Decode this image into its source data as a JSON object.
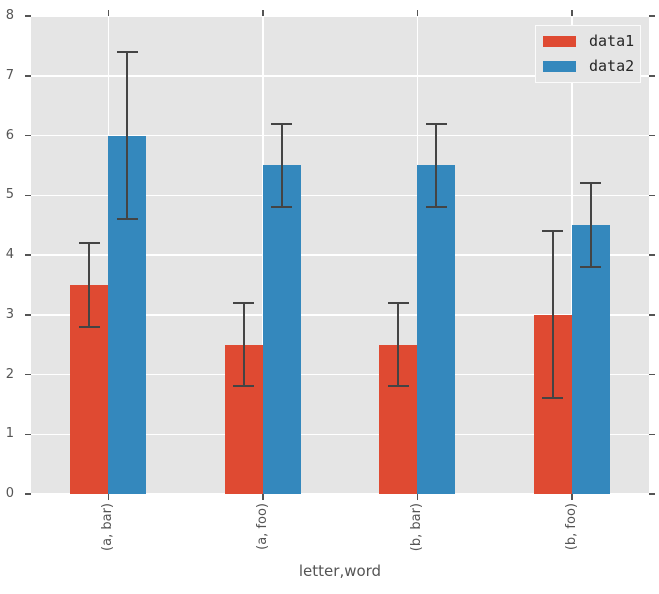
{
  "figure": {
    "background": "#ffffff",
    "panel_background": "#e5e5e5",
    "grid_color": "#ffffff",
    "tick_color": "#555555",
    "text_color": "#555555",
    "error_bar_color": "#444444",
    "legend_border_color": "#fbfbfb",
    "legend_background": "#e5e5e5"
  },
  "chart_data": {
    "type": "bar",
    "title": "",
    "xlabel": "letter,word",
    "ylabel": "",
    "categories": [
      "(a, bar)",
      "(a, foo)",
      "(b, bar)",
      "(b, foo)"
    ],
    "series": [
      {
        "name": "data1",
        "color": "#df4a32",
        "values": [
          3.5,
          2.5,
          2.5,
          3.0
        ],
        "errors": [
          0.7,
          0.7,
          0.7,
          1.4
        ]
      },
      {
        "name": "data2",
        "color": "#3488bd",
        "values": [
          6.0,
          5.5,
          5.5,
          4.5
        ],
        "errors": [
          1.4,
          0.7,
          0.7,
          0.7
        ]
      }
    ],
    "ylim": [
      0,
      8
    ],
    "yticks": [
      0,
      1,
      2,
      3,
      4,
      5,
      6,
      7,
      8
    ],
    "grid": true,
    "x_tick_rotation": 90,
    "legend_position": "upper right"
  }
}
